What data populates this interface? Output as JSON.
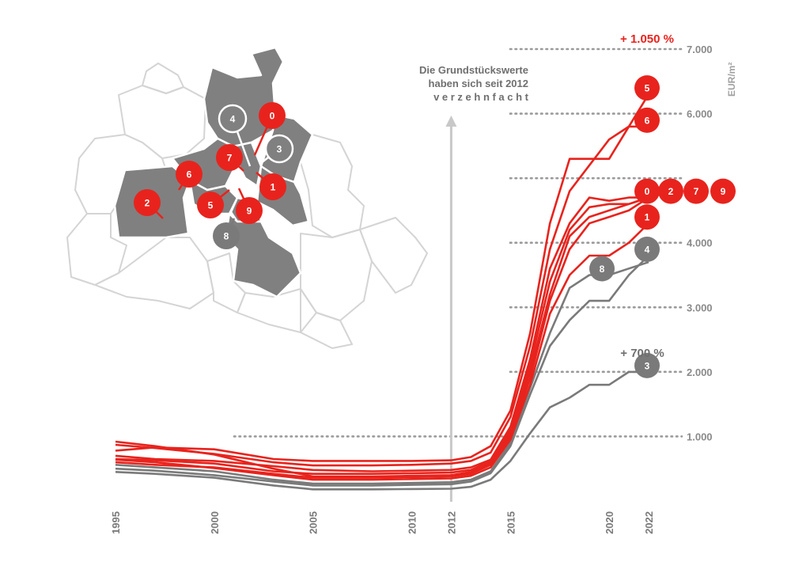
{
  "colors": {
    "red": "#e8231d",
    "gray": "#7a7a7a",
    "map_fill": "#808080",
    "map_outline": "#d4d4d4",
    "dotted": "#9a9a9a",
    "arrow": "#c8c8c8"
  },
  "annotation": {
    "line1": "Die Grundstückswerte",
    "line2": "haben sich seit 2012",
    "line3": "v e r z e h n f a c h t"
  },
  "labels": {
    "unit": "EUR/m²",
    "high_growth": "+ 1.050 %",
    "low_growth": "+ 700 %"
  },
  "chart_data": {
    "type": "line",
    "title": "",
    "xlabel": "",
    "ylabel": "EUR/m²",
    "xlim": [
      1995,
      2022
    ],
    "ylim": [
      0,
      7000
    ],
    "x_ticks": [
      "1995",
      "2000",
      "2005",
      "2010",
      "2012",
      "2015",
      "2020",
      "2022"
    ],
    "y_ticks": [
      "1.000",
      "2.000",
      "3.000",
      "4.000",
      "6.000",
      "7.000"
    ],
    "gridlines_dotted": [
      1000,
      2000,
      3000,
      4000,
      5000,
      6000,
      7000
    ],
    "highlight_x": 2012,
    "series": [
      {
        "badge": "5",
        "color": "red",
        "x": [
          1995,
          1997,
          2000,
          2003,
          2005,
          2008,
          2010,
          2012,
          2013,
          2014,
          2015,
          2016,
          2017,
          2018,
          2019,
          2020,
          2021,
          2022
        ],
        "y": [
          780,
          830,
          800,
          650,
          620,
          620,
          620,
          630,
          680,
          850,
          1400,
          2600,
          4300,
          5300,
          5300,
          5300,
          5800,
          6300
        ]
      },
      {
        "badge": "6",
        "color": "red",
        "x": [
          1995,
          1997,
          2000,
          2003,
          2005,
          2008,
          2010,
          2012,
          2013,
          2014,
          2015,
          2016,
          2017,
          2018,
          2019,
          2020,
          2021,
          2022
        ],
        "y": [
          870,
          820,
          730,
          600,
          550,
          550,
          560,
          580,
          620,
          750,
          1300,
          2400,
          3900,
          4800,
          5200,
          5600,
          5800,
          5800
        ]
      },
      {
        "badge": "0",
        "color": "red",
        "x": [
          1995,
          1997,
          2000,
          2003,
          2005,
          2008,
          2010,
          2012,
          2013,
          2014,
          2015,
          2016,
          2017,
          2018,
          2019,
          2020,
          2021,
          2022
        ],
        "y": [
          700,
          650,
          620,
          540,
          480,
          460,
          470,
          480,
          520,
          640,
          1150,
          2200,
          3600,
          4300,
          4700,
          4650,
          4700,
          4700
        ]
      },
      {
        "badge": "2",
        "color": "red",
        "x": [
          1995,
          1997,
          2000,
          2003,
          2005,
          2008,
          2010,
          2012,
          2013,
          2014,
          2015,
          2016,
          2017,
          2018,
          2019,
          2020,
          2021,
          2022
        ],
        "y": [
          650,
          630,
          580,
          460,
          420,
          420,
          430,
          440,
          480,
          620,
          1100,
          2100,
          3400,
          4200,
          4550,
          4600,
          4600,
          4700
        ]
      },
      {
        "badge": "7",
        "color": "red",
        "x": [
          1995,
          1997,
          2000,
          2003,
          2005,
          2008,
          2010,
          2012,
          2013,
          2014,
          2015,
          2016,
          2017,
          2018,
          2019,
          2020,
          2021,
          2022
        ],
        "y": [
          920,
          850,
          720,
          500,
          380,
          380,
          390,
          400,
          450,
          590,
          1050,
          2000,
          3200,
          4100,
          4400,
          4500,
          4600,
          4700
        ]
      },
      {
        "badge": "9",
        "color": "red",
        "x": [
          1995,
          1997,
          2000,
          2003,
          2005,
          2008,
          2010,
          2012,
          2013,
          2014,
          2015,
          2016,
          2017,
          2018,
          2019,
          2020,
          2021,
          2022
        ],
        "y": [
          600,
          560,
          520,
          420,
          360,
          360,
          370,
          380,
          420,
          560,
          1000,
          1900,
          3100,
          3900,
          4300,
          4400,
          4500,
          4700
        ]
      },
      {
        "badge": "1",
        "color": "red",
        "x": [
          1995,
          1997,
          2000,
          2003,
          2005,
          2008,
          2010,
          2012,
          2013,
          2014,
          2015,
          2016,
          2017,
          2018,
          2019,
          2020,
          2021,
          2022
        ],
        "y": [
          640,
          600,
          510,
          400,
          330,
          330,
          340,
          350,
          390,
          520,
          950,
          1800,
          2900,
          3500,
          3800,
          3800,
          4000,
          4300
        ]
      },
      {
        "badge": "8",
        "color": "gray",
        "x": [
          1995,
          1997,
          2000,
          2003,
          2005,
          2008,
          2010,
          2012,
          2013,
          2014,
          2015,
          2016,
          2017,
          2018,
          2019,
          2020,
          2021,
          2022
        ],
        "y": [
          560,
          520,
          460,
          330,
          270,
          270,
          280,
          290,
          330,
          460,
          900,
          1750,
          2600,
          3300,
          3500,
          3500,
          3600,
          3700
        ]
      },
      {
        "badge": "4",
        "color": "gray",
        "x": [
          1995,
          1997,
          2000,
          2003,
          2005,
          2008,
          2010,
          2012,
          2013,
          2014,
          2015,
          2016,
          2017,
          2018,
          2019,
          2020,
          2021,
          2022
        ],
        "y": [
          500,
          470,
          400,
          300,
          240,
          240,
          250,
          260,
          300,
          430,
          850,
          1650,
          2400,
          2800,
          3100,
          3100,
          3500,
          3800
        ]
      },
      {
        "badge": "3",
        "color": "gray",
        "x": [
          1995,
          1997,
          2000,
          2003,
          2005,
          2008,
          2010,
          2012,
          2013,
          2014,
          2015,
          2016,
          2017,
          2018,
          2019,
          2020,
          2021,
          2022
        ],
        "y": [
          450,
          420,
          360,
          240,
          180,
          180,
          185,
          190,
          220,
          330,
          620,
          1050,
          1450,
          1600,
          1800,
          1800,
          2000,
          2000
        ]
      }
    ],
    "end_badges": [
      {
        "label": "5",
        "color": "red",
        "x": 2022,
        "y": 6300
      },
      {
        "label": "6",
        "color": "red",
        "x": 2022,
        "y": 5800
      },
      {
        "label": "0",
        "color": "red",
        "x": 2022,
        "y": 4700
      },
      {
        "label": "2",
        "color": "red",
        "x": 2023,
        "y": 4700
      },
      {
        "label": "7",
        "color": "red",
        "x": 2024,
        "y": 4700
      },
      {
        "label": "9",
        "color": "red",
        "x": 2025,
        "y": 4700
      },
      {
        "label": "1",
        "color": "red",
        "x": 2022,
        "y": 4300
      },
      {
        "label": "4",
        "color": "gray",
        "x": 2022,
        "y": 3800
      },
      {
        "label": "8",
        "color": "gray",
        "x": 2020,
        "y": 3500
      },
      {
        "label": "3",
        "color": "gray",
        "x": 2022,
        "y": 2000
      }
    ]
  },
  "map": {
    "markers": [
      {
        "label": "0",
        "style": "red"
      },
      {
        "label": "4",
        "style": "ring"
      },
      {
        "label": "3",
        "style": "ring"
      },
      {
        "label": "7",
        "style": "red"
      },
      {
        "label": "1",
        "style": "red"
      },
      {
        "label": "6",
        "style": "red"
      },
      {
        "label": "2",
        "style": "red"
      },
      {
        "label": "5",
        "style": "red"
      },
      {
        "label": "9",
        "style": "red"
      },
      {
        "label": "8",
        "style": "gray"
      }
    ]
  }
}
